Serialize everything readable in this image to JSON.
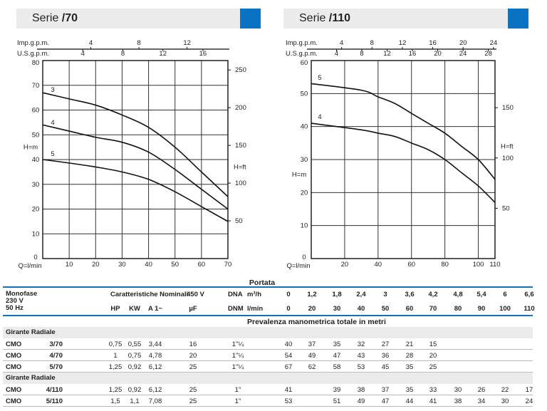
{
  "headers": [
    {
      "prefix": "Serie ",
      "series": "/70"
    },
    {
      "prefix": "Serie ",
      "series": "/110"
    }
  ],
  "chart_data": [
    {
      "type": "line",
      "title": "Serie /70",
      "xlabel": "Q=l/min",
      "ylabel": "H=m",
      "y2label": "H=ft",
      "xlim": [
        0,
        70
      ],
      "ylim": [
        0,
        80
      ],
      "xticks": [
        10,
        20,
        30,
        40,
        50,
        60,
        70
      ],
      "yticks": [
        0,
        10,
        20,
        30,
        40,
        50,
        60,
        70,
        80
      ],
      "y2ticks": [
        50,
        100,
        150,
        200,
        250
      ],
      "top_axes": {
        "imp_label": "Imp.g.p.m.",
        "imp_ticks": [
          4,
          8,
          12
        ],
        "us_label": "U.S.g.p.m.",
        "us_ticks": [
          4,
          8,
          12,
          16
        ]
      },
      "grid": true,
      "x": [
        0,
        10,
        20,
        30,
        40,
        50,
        60,
        70
      ],
      "series": [
        {
          "name": "3",
          "values": [
            40,
            38.6,
            37,
            35,
            32,
            27,
            21,
            15
          ]
        },
        {
          "name": "4",
          "values": [
            54,
            51.5,
            49,
            47,
            43,
            36,
            28,
            20
          ]
        },
        {
          "name": "5",
          "values": [
            67,
            64.5,
            62,
            58,
            53,
            45,
            35,
            25
          ]
        }
      ]
    },
    {
      "type": "line",
      "title": "Serie /110",
      "xlabel": "Q=l/min",
      "ylabel": "H=m",
      "y2label": "H=ft",
      "xlim": [
        0,
        110
      ],
      "ylim": [
        0,
        60
      ],
      "xticks": [
        20,
        40,
        60,
        80,
        100,
        110
      ],
      "yticks": [
        0,
        10,
        20,
        30,
        40,
        50,
        60
      ],
      "y2ticks": [
        50,
        100,
        150
      ],
      "top_axes": {
        "imp_label": "Imp.g.p.m.",
        "imp_ticks": [
          4,
          8,
          12,
          16,
          20,
          24
        ],
        "us_label": "U.S.g.p.m.",
        "us_ticks": [
          4,
          8,
          12,
          16,
          20,
          24,
          28
        ]
      },
      "grid": true,
      "x": [
        0,
        30,
        40,
        50,
        60,
        70,
        80,
        90,
        100,
        110
      ],
      "series": [
        {
          "name": "4",
          "values": [
            41,
            39,
            38,
            37,
            35,
            33,
            30,
            26,
            22,
            17
          ]
        },
        {
          "name": "5",
          "values": [
            53,
            51,
            49,
            47,
            44,
            41,
            38,
            34,
            30,
            24
          ]
        }
      ]
    }
  ],
  "table": {
    "portata": "Portata",
    "monofase": "Monofase",
    "v230": "230 V",
    "hz50": "50 Hz",
    "caratteristiche": "Caratteristiche Nominali",
    "v450": "450 V",
    "hp": "HP",
    "kw": "KW",
    "a1": "A 1~",
    "uf": "µF",
    "dna": "DNA",
    "dnm": "DNM",
    "m3h": "m³/h",
    "lmin": "l/min",
    "m3h_values": [
      "0",
      "1,2",
      "1,8",
      "2,4",
      "3",
      "3,6",
      "4,2",
      "4,8",
      "5,4",
      "6",
      "6,6"
    ],
    "lmin_values": [
      "0",
      "20",
      "30",
      "40",
      "50",
      "60",
      "70",
      "80",
      "90",
      "100",
      "110"
    ],
    "prevalenza": "Prevalenza manometrica totale in metri",
    "groups": [
      {
        "label": "Girante Radiale",
        "rows": [
          {
            "brand": "CMO",
            "model": "3/70",
            "hp": "0,75",
            "kw": "0,55",
            "a": "3,44",
            "uf": "16",
            "dna": "1\"¼",
            "h": [
              "40",
              "37",
              "35",
              "32",
              "27",
              "21",
              "15",
              "",
              "",
              "",
              ""
            ]
          },
          {
            "brand": "CMO",
            "model": "4/70",
            "hp": "1",
            "kw": "0,75",
            "a": "4,78",
            "uf": "20",
            "dna": "1\"¼",
            "h": [
              "54",
              "49",
              "47",
              "43",
              "36",
              "28",
              "20",
              "",
              "",
              "",
              ""
            ]
          },
          {
            "brand": "CMO",
            "model": "5/70",
            "hp": "1,25",
            "kw": "0,92",
            "a": "6,12",
            "uf": "25",
            "dna": "1\"¼",
            "h": [
              "67",
              "62",
              "58",
              "53",
              "45",
              "35",
              "25",
              "",
              "",
              "",
              ""
            ]
          }
        ]
      },
      {
        "label": "Girante Radiale",
        "rows": [
          {
            "brand": "CMO",
            "model": "4/110",
            "hp": "1,25",
            "kw": "0,92",
            "a": "6,12",
            "uf": "25",
            "dna": "1\"",
            "h": [
              "41",
              "",
              "39",
              "38",
              "37",
              "35",
              "33",
              "30",
              "26",
              "22",
              "17"
            ]
          },
          {
            "brand": "CMO",
            "model": "5/110",
            "hp": "1,5",
            "kw": "1,1",
            "a": "7,08",
            "uf": "25",
            "dna": "1\"",
            "h": [
              "53",
              "",
              "51",
              "49",
              "47",
              "44",
              "41",
              "38",
              "34",
              "30",
              "24"
            ]
          }
        ]
      }
    ]
  }
}
